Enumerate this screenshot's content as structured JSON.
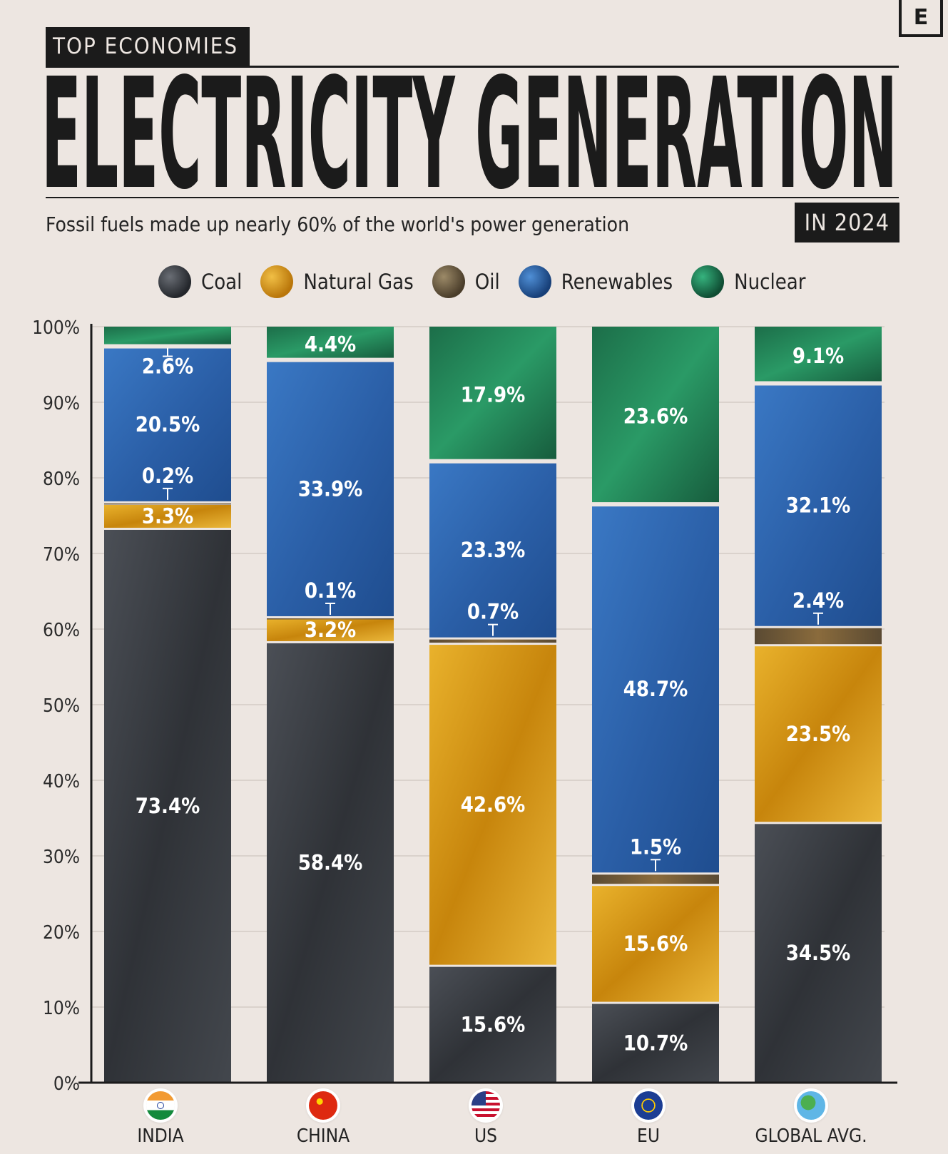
{
  "brand": {
    "logo_letter": "E"
  },
  "header": {
    "kicker": "TOP ECONOMIES",
    "title": "ELECTRICITY GENERATION",
    "subtitle": "Fossil fuels made up nearly 60% of the world's power generation",
    "year_badge": "IN 2024"
  },
  "colors": {
    "coal": "#3f4349",
    "natural_gas": "#d79a12",
    "oil": "#6b5a3f",
    "renewables": "#2f67b2",
    "nuclear": "#1f7a52"
  },
  "legend": [
    {
      "key": "coal",
      "label": "Coal",
      "icon": "coal-icon"
    },
    {
      "key": "natural_gas",
      "label": "Natural Gas",
      "icon": "natural-gas-icon"
    },
    {
      "key": "oil",
      "label": "Oil",
      "icon": "oil-icon"
    },
    {
      "key": "renewables",
      "label": "Renewables",
      "icon": "renewables-icon"
    },
    {
      "key": "nuclear",
      "label": "Nuclear",
      "icon": "nuclear-icon"
    }
  ],
  "chart_data": {
    "type": "bar",
    "stacked": true,
    "ylim": [
      0,
      100
    ],
    "y_ticks": [
      "0%",
      "10%",
      "20%",
      "30%",
      "40%",
      "50%",
      "60%",
      "70%",
      "80%",
      "90%",
      "100%"
    ],
    "categories": [
      "INDIA",
      "CHINA",
      "US",
      "EU",
      "GLOBAL AVG."
    ],
    "category_flags": [
      "india-flag-icon",
      "china-flag-icon",
      "us-flag-icon",
      "eu-flag-icon",
      "globe-icon"
    ],
    "series": [
      {
        "name": "Coal",
        "key": "coal",
        "values": [
          73.4,
          58.4,
          15.6,
          10.7,
          34.5
        ]
      },
      {
        "name": "Natural Gas",
        "key": "natural_gas",
        "values": [
          3.3,
          3.2,
          42.6,
          15.6,
          23.5
        ]
      },
      {
        "name": "Oil",
        "key": "oil",
        "values": [
          0.2,
          0.1,
          0.7,
          1.5,
          2.4
        ]
      },
      {
        "name": "Renewables",
        "key": "renewables",
        "values": [
          20.5,
          33.9,
          23.3,
          48.7,
          32.1
        ]
      },
      {
        "name": "Nuclear",
        "key": "nuclear",
        "values": [
          2.6,
          4.4,
          17.9,
          23.6,
          9.1
        ]
      }
    ],
    "value_labels": [
      [
        "73.4%",
        "3.3%",
        "0.2%",
        "20.5%",
        "2.6%"
      ],
      [
        "58.4%",
        "3.2%",
        "0.1%",
        "33.9%",
        "4.4%"
      ],
      [
        "15.6%",
        "42.6%",
        "0.7%",
        "23.3%",
        "17.9%"
      ],
      [
        "10.7%",
        "15.6%",
        "1.5%",
        "48.7%",
        "23.6%"
      ],
      [
        "34.5%",
        "23.5%",
        "2.4%",
        "32.1%",
        "9.1%"
      ]
    ]
  }
}
